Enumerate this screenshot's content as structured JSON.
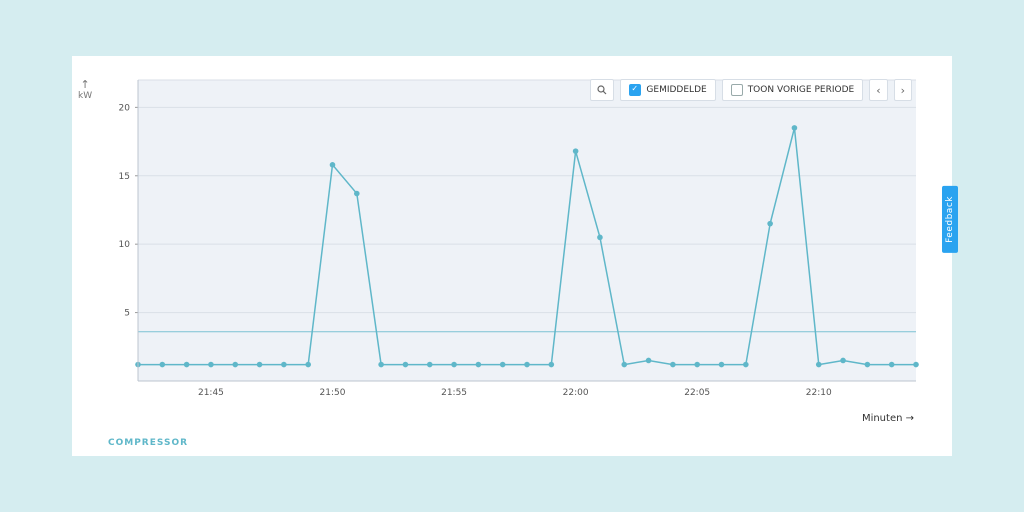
{
  "page": {
    "outer_bg": "#d5edf0",
    "panel_bg": "#ffffff"
  },
  "controls": {
    "gemiddelde_label": "GEMIDDELDE",
    "toon_vorige_label": "TOON VORIGE PERIODE",
    "gemiddelde_checked": true,
    "toon_vorige_checked": false
  },
  "feedback": {
    "label": "Feedback"
  },
  "legend": {
    "label": "COMPRESSOR"
  },
  "axes": {
    "y_unit": "kW",
    "x_label": "Minuten  →"
  },
  "chart": {
    "type": "line",
    "plot_bg": "#eef2f7",
    "grid_color": "#d9dfe7",
    "avg_line_color": "#5fb7c9",
    "line_color": "#5fb7c9",
    "marker_color": "#5fb7c9",
    "marker_radius": 2.8,
    "line_width": 1.5,
    "avg_value": 3.6,
    "x_domain_min": 0,
    "x_domain_max": 32,
    "y_domain_min": 0,
    "y_domain_max": 22,
    "y_ticks": [
      5,
      10,
      15,
      20
    ],
    "x_ticks": [
      {
        "pos": 3,
        "label": "21:45"
      },
      {
        "pos": 8,
        "label": "21:50"
      },
      {
        "pos": 13,
        "label": "21:55"
      },
      {
        "pos": 18,
        "label": "22:00"
      },
      {
        "pos": 23,
        "label": "22:05"
      },
      {
        "pos": 28,
        "label": "22:10"
      }
    ],
    "series": [
      {
        "x": 0,
        "y": 1.2
      },
      {
        "x": 1,
        "y": 1.2
      },
      {
        "x": 2,
        "y": 1.2
      },
      {
        "x": 3,
        "y": 1.2
      },
      {
        "x": 4,
        "y": 1.2
      },
      {
        "x": 5,
        "y": 1.2
      },
      {
        "x": 6,
        "y": 1.2
      },
      {
        "x": 7,
        "y": 1.2
      },
      {
        "x": 8,
        "y": 15.8
      },
      {
        "x": 9,
        "y": 13.7
      },
      {
        "x": 10,
        "y": 1.2
      },
      {
        "x": 11,
        "y": 1.2
      },
      {
        "x": 12,
        "y": 1.2
      },
      {
        "x": 13,
        "y": 1.2
      },
      {
        "x": 14,
        "y": 1.2
      },
      {
        "x": 15,
        "y": 1.2
      },
      {
        "x": 16,
        "y": 1.2
      },
      {
        "x": 17,
        "y": 1.2
      },
      {
        "x": 18,
        "y": 16.8
      },
      {
        "x": 19,
        "y": 10.5
      },
      {
        "x": 20,
        "y": 1.2
      },
      {
        "x": 21,
        "y": 1.5
      },
      {
        "x": 22,
        "y": 1.2
      },
      {
        "x": 23,
        "y": 1.2
      },
      {
        "x": 24,
        "y": 1.2
      },
      {
        "x": 25,
        "y": 1.2
      },
      {
        "x": 26,
        "y": 11.5
      },
      {
        "x": 27,
        "y": 18.5
      },
      {
        "x": 28,
        "y": 1.2
      },
      {
        "x": 29,
        "y": 1.5
      },
      {
        "x": 30,
        "y": 1.2
      },
      {
        "x": 31,
        "y": 1.2
      },
      {
        "x": 32,
        "y": 1.2
      }
    ]
  }
}
